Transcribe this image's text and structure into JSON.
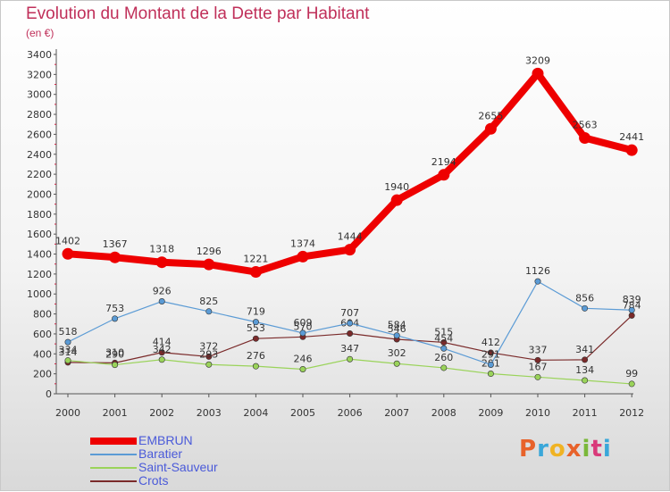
{
  "header": {
    "title": "Evolution du Montant de la Dette par Habitant",
    "subtitle": "(en €)"
  },
  "logo": {
    "text": "Proxiti",
    "colors": [
      "#e8622a",
      "#3aa7d9",
      "#f0b323",
      "#e8622a",
      "#7ab83a",
      "#d93a7a",
      "#3aa7d9"
    ]
  },
  "chart_data": {
    "type": "line",
    "title": "Evolution du Montant de la Dette par Habitant",
    "subtitle": "(en €)",
    "x": [
      "2000",
      "2001",
      "2002",
      "2003",
      "2004",
      "2005",
      "2006",
      "2007",
      "2008",
      "2009",
      "2010",
      "2011",
      "2012"
    ],
    "ylim": [
      0,
      3400
    ],
    "yticks": [
      0,
      200,
      400,
      600,
      800,
      1000,
      1200,
      1400,
      1600,
      1800,
      2000,
      2200,
      2400,
      2600,
      2800,
      3000,
      3200,
      3400
    ],
    "grid": false,
    "legend_position": "bottom-left",
    "series": [
      {
        "name": "EMBRUN",
        "color": "#ee0000",
        "emphasis": true,
        "values": [
          1402,
          1367,
          1318,
          1296,
          1221,
          1374,
          1444,
          1940,
          2194,
          2655,
          3209,
          2563,
          2441
        ]
      },
      {
        "name": "Baratier",
        "color": "#5b9bd5",
        "values": [
          518,
          753,
          926,
          825,
          719,
          609,
          707,
          584,
          454,
          291,
          1126,
          856,
          839
        ]
      },
      {
        "name": "Saint-Sauveur",
        "color": "#9ad35a",
        "values": [
          334,
          290,
          342,
          293,
          276,
          246,
          347,
          302,
          260,
          201,
          167,
          134,
          99
        ]
      },
      {
        "name": "Crots",
        "color": "#7a2a2a",
        "values": [
          314,
          310,
          414,
          372,
          553,
          570,
          604,
          546,
          515,
          412,
          337,
          341,
          784
        ]
      }
    ]
  }
}
